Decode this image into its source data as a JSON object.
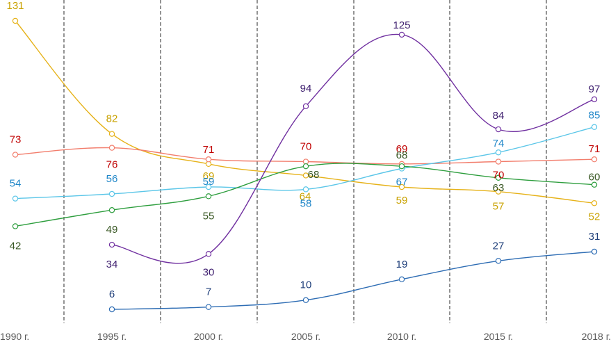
{
  "chart_data": {
    "type": "line",
    "title": "",
    "xlabel": "",
    "ylabel": "",
    "ylim": [
      0,
      135
    ],
    "grid": "vertical-dashed",
    "categories": [
      "1990 г.",
      "1995 г.",
      "2000 г.",
      "2005 г.",
      "2010 г.",
      "2015 г.",
      "2018 г."
    ],
    "series": [
      {
        "name": "series-gold",
        "color": "#E6B219",
        "values": [
          131,
          82,
          69,
          64,
          59,
          57,
          52
        ]
      },
      {
        "name": "series-red",
        "color": "#F27D6C",
        "values": [
          73,
          76,
          71,
          70,
          69,
          70,
          71
        ]
      },
      {
        "name": "series-cyan",
        "color": "#5BC6E8",
        "values": [
          54,
          56,
          59,
          58,
          67,
          74,
          85
        ]
      },
      {
        "name": "series-green",
        "color": "#2E9E3E",
        "values": [
          42,
          49,
          55,
          68,
          68,
          63,
          60
        ]
      },
      {
        "name": "series-purple",
        "color": "#7030A0",
        "values": [
          null,
          34,
          30,
          94,
          125,
          84,
          97
        ]
      },
      {
        "name": "series-blue",
        "color": "#2E6DB4",
        "values": [
          null,
          6,
          7,
          10,
          19,
          27,
          31
        ]
      }
    ],
    "label_colors": {
      "series-gold": "#C9A200",
      "series-red": "#C00000",
      "series-cyan": "#1F86C8",
      "series-green": "#385723",
      "series-purple": "#3D1D6E",
      "series-blue": "#1F3F7A"
    }
  }
}
